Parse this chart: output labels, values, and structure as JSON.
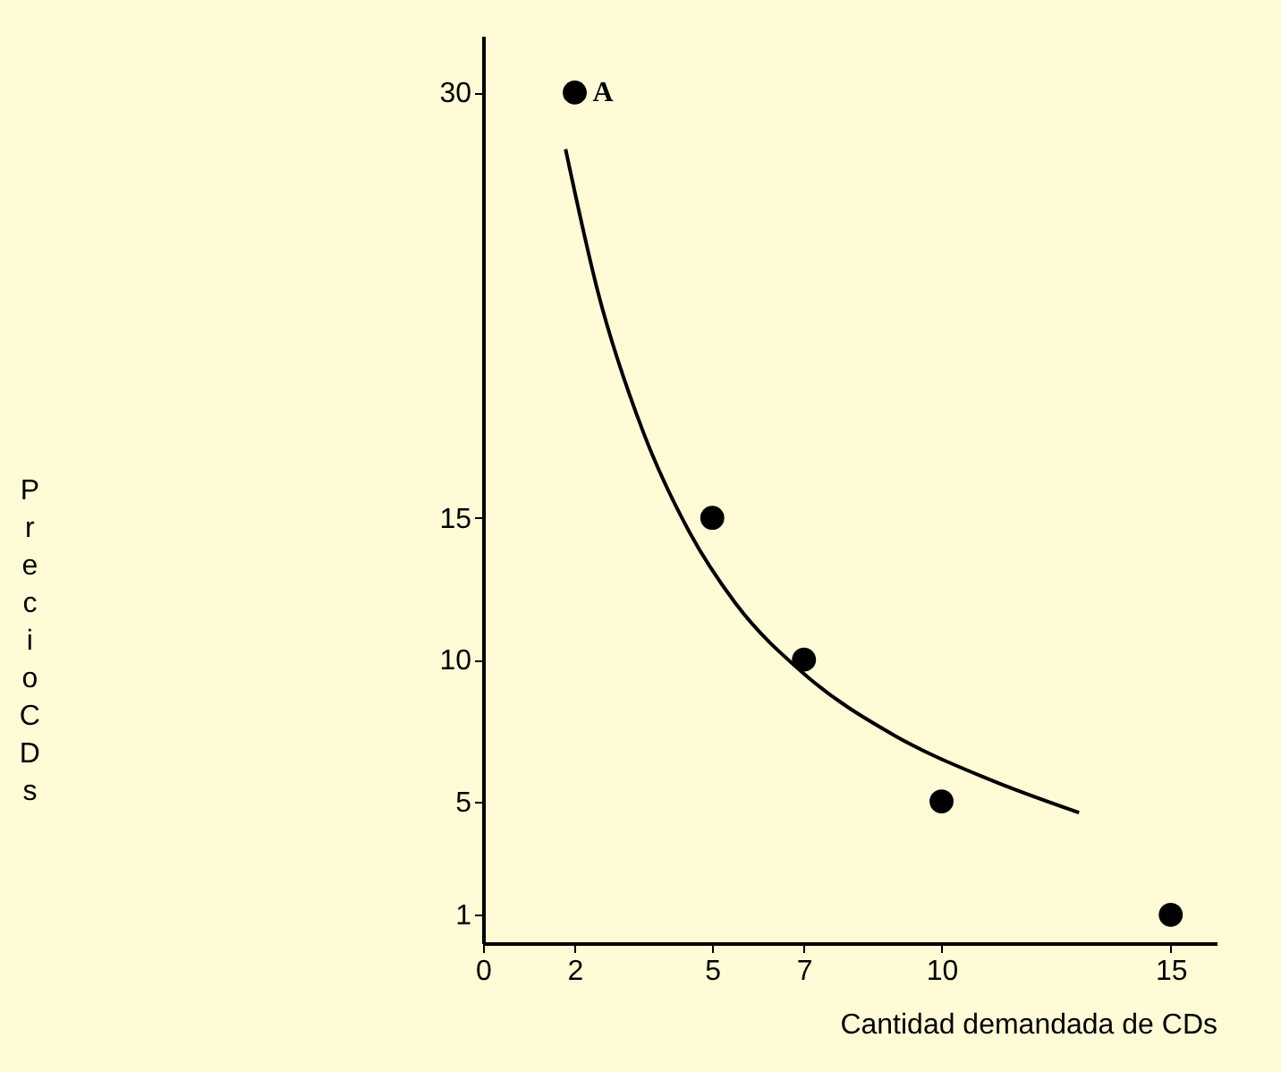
{
  "chart_data": {
    "type": "scatter",
    "xlabel": "Cantidad demandada de CDs",
    "ylabel": "Precio CDs",
    "xlim": [
      0,
      16
    ],
    "ylim": [
      0,
      32
    ],
    "xticks": [
      0,
      2,
      5,
      7,
      10,
      15
    ],
    "yticks": [
      1,
      5,
      10,
      15,
      30
    ],
    "grid": false,
    "marker": "circle",
    "series": [
      {
        "color": "#000000",
        "x": [
          2,
          5,
          7,
          10,
          15
        ],
        "values": [
          30,
          15,
          10,
          5,
          1
        ]
      },
      {
        "type": "line",
        "color": "#000000",
        "marker": "none",
        "x": [
          1.8,
          2.5,
          3.5,
          4.5,
          5.5,
          7,
          9,
          11,
          13
        ],
        "values": [
          28,
          23,
          18,
          14.5,
          12,
          9.5,
          7.3,
          5.8,
          4.6
        ]
      }
    ],
    "annotations": [
      {
        "text": "A",
        "x": 2,
        "y": 30
      }
    ]
  }
}
